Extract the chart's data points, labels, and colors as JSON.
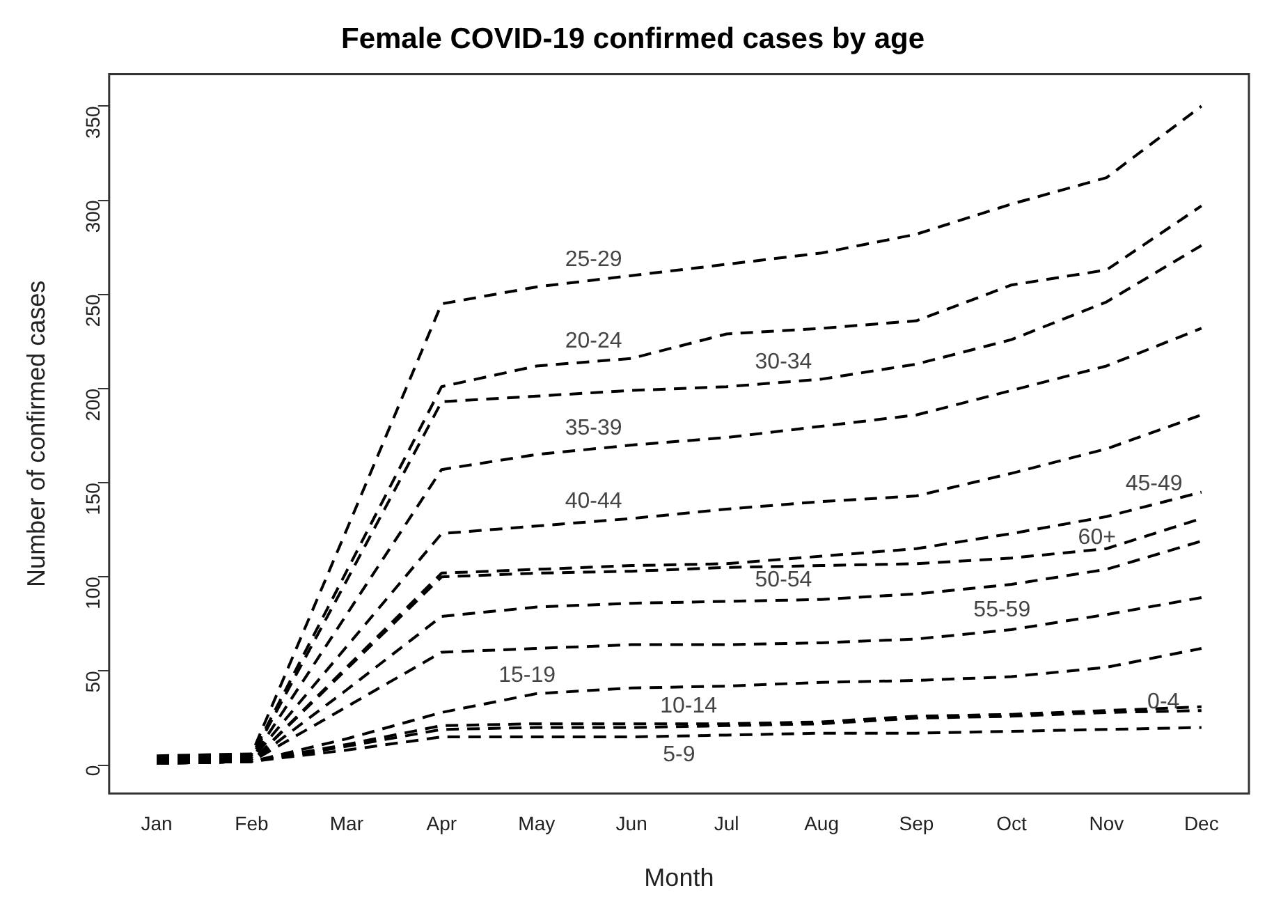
{
  "chart_data": {
    "type": "line",
    "title": "Female COVID-19 confirmed cases by age",
    "xlabel": "Month",
    "ylabel": "Number of confirmed cases",
    "categories": [
      "Jan",
      "Feb",
      "Mar",
      "Apr",
      "May",
      "Jun",
      "Jul",
      "Aug",
      "Sep",
      "Oct",
      "Nov",
      "Dec"
    ],
    "ylim": [
      -15,
      367
    ],
    "yticks": [
      0,
      50,
      100,
      150,
      200,
      250,
      300,
      350
    ],
    "grid": false,
    "legend": false,
    "line_style": "dashed",
    "marker": "none",
    "series": [
      {
        "name": "0-4",
        "color": "#000000",
        "values": [
          1,
          2,
          10,
          19,
          20,
          20,
          21,
          22,
          25,
          26,
          28,
          29
        ]
      },
      {
        "name": "5-9",
        "color": "#000000",
        "values": [
          1,
          2,
          8,
          15,
          15,
          15,
          16,
          17,
          17,
          18,
          19,
          20
        ]
      },
      {
        "name": "10-14",
        "color": "#000000",
        "values": [
          1,
          2,
          11,
          21,
          22,
          22,
          22,
          23,
          26,
          27,
          29,
          31
        ]
      },
      {
        "name": "15-19",
        "color": "#000000",
        "values": [
          1,
          2,
          14,
          28,
          38,
          41,
          42,
          44,
          45,
          47,
          52,
          62
        ]
      },
      {
        "name": "20-24",
        "color": "#000000",
        "values": [
          4,
          5,
          103,
          201,
          212,
          216,
          229,
          232,
          236,
          255,
          263,
          297
        ]
      },
      {
        "name": "25-29",
        "color": "#000000",
        "values": [
          5,
          6,
          125,
          245,
          254,
          260,
          266,
          272,
          282,
          298,
          312,
          350
        ]
      },
      {
        "name": "30-34",
        "color": "#000000",
        "values": [
          3,
          4,
          98,
          193,
          196,
          199,
          201,
          205,
          213,
          226,
          246,
          276
        ]
      },
      {
        "name": "35-39",
        "color": "#000000",
        "values": [
          2,
          3,
          80,
          157,
          165,
          170,
          174,
          180,
          186,
          199,
          212,
          232
        ]
      },
      {
        "name": "40-44",
        "color": "#000000",
        "values": [
          2,
          3,
          63,
          123,
          127,
          131,
          136,
          140,
          143,
          155,
          168,
          186
        ]
      },
      {
        "name": "45-49",
        "color": "#000000",
        "values": [
          1,
          2,
          52,
          102,
          104,
          106,
          107,
          111,
          115,
          123,
          132,
          145
        ]
      },
      {
        "name": "50-54",
        "color": "#000000",
        "values": [
          1,
          2,
          40,
          79,
          84,
          86,
          87,
          88,
          91,
          96,
          104,
          119
        ]
      },
      {
        "name": "55-59",
        "color": "#000000",
        "values": [
          1,
          2,
          31,
          60,
          62,
          64,
          64,
          65,
          67,
          72,
          80,
          89
        ]
      },
      {
        "name": "60+",
        "color": "#000000",
        "values": [
          1,
          2,
          51,
          100,
          102,
          103,
          105,
          106,
          107,
          110,
          115,
          131
        ]
      }
    ]
  }
}
